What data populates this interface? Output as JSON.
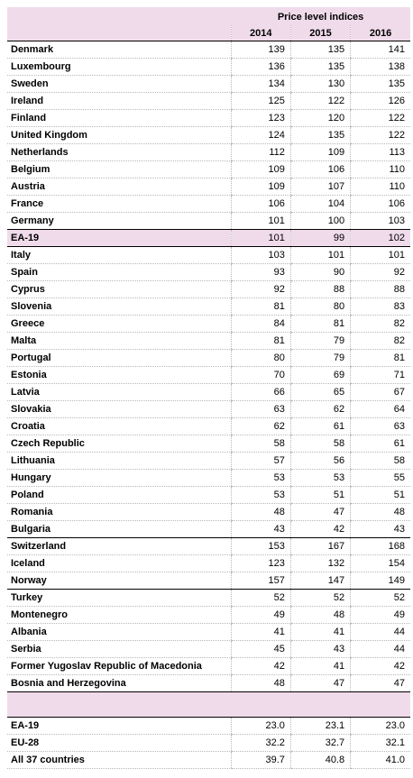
{
  "header": {
    "group_title": "Price level indices",
    "years": [
      "2014",
      "2015",
      "2016"
    ]
  },
  "groups": [
    {
      "rows": [
        {
          "name": "Denmark",
          "values": [
            "139",
            "135",
            "141"
          ]
        },
        {
          "name": "Luxembourg",
          "values": [
            "136",
            "135",
            "138"
          ]
        },
        {
          "name": "Sweden",
          "values": [
            "134",
            "130",
            "135"
          ]
        },
        {
          "name": "Ireland",
          "values": [
            "125",
            "122",
            "126"
          ]
        },
        {
          "name": "Finland",
          "values": [
            "123",
            "120",
            "122"
          ]
        },
        {
          "name": "United Kingdom",
          "values": [
            "124",
            "135",
            "122"
          ]
        },
        {
          "name": "Netherlands",
          "values": [
            "112",
            "109",
            "113"
          ]
        },
        {
          "name": "Belgium",
          "values": [
            "109",
            "106",
            "110"
          ]
        },
        {
          "name": "Austria",
          "values": [
            "109",
            "107",
            "110"
          ]
        },
        {
          "name": "France",
          "values": [
            "106",
            "104",
            "106"
          ]
        },
        {
          "name": "Germany",
          "values": [
            "101",
            "100",
            "103"
          ]
        }
      ]
    },
    {
      "highlight": true,
      "rows": [
        {
          "name": "EA-19",
          "values": [
            "101",
            "99",
            "102"
          ]
        }
      ]
    },
    {
      "rows": [
        {
          "name": "Italy",
          "values": [
            "103",
            "101",
            "101"
          ]
        },
        {
          "name": "Spain",
          "values": [
            "93",
            "90",
            "92"
          ]
        },
        {
          "name": "Cyprus",
          "values": [
            "92",
            "88",
            "88"
          ]
        },
        {
          "name": "Slovenia",
          "values": [
            "81",
            "80",
            "83"
          ]
        },
        {
          "name": "Greece",
          "values": [
            "84",
            "81",
            "82"
          ]
        },
        {
          "name": "Malta",
          "values": [
            "81",
            "79",
            "82"
          ]
        },
        {
          "name": "Portugal",
          "values": [
            "80",
            "79",
            "81"
          ]
        },
        {
          "name": "Estonia",
          "values": [
            "70",
            "69",
            "71"
          ]
        },
        {
          "name": "Latvia",
          "values": [
            "66",
            "65",
            "67"
          ]
        },
        {
          "name": "Slovakia",
          "values": [
            "63",
            "62",
            "64"
          ]
        },
        {
          "name": "Croatia",
          "values": [
            "62",
            "61",
            "63"
          ]
        },
        {
          "name": "Czech Republic",
          "values": [
            "58",
            "58",
            "61"
          ]
        },
        {
          "name": "Lithuania",
          "values": [
            "57",
            "56",
            "58"
          ]
        },
        {
          "name": "Hungary",
          "values": [
            "53",
            "53",
            "55"
          ]
        },
        {
          "name": "Poland",
          "values": [
            "53",
            "51",
            "51"
          ]
        },
        {
          "name": "Romania",
          "values": [
            "48",
            "47",
            "48"
          ]
        },
        {
          "name": "Bulgaria",
          "values": [
            "43",
            "42",
            "43"
          ]
        }
      ]
    },
    {
      "rows": [
        {
          "name": "Switzerland",
          "values": [
            "153",
            "167",
            "168"
          ]
        },
        {
          "name": "Iceland",
          "values": [
            "123",
            "132",
            "154"
          ]
        },
        {
          "name": "Norway",
          "values": [
            "157",
            "147",
            "149"
          ]
        }
      ]
    },
    {
      "rows": [
        {
          "name": "Turkey",
          "values": [
            "52",
            "52",
            "52"
          ]
        },
        {
          "name": "Montenegro",
          "values": [
            "49",
            "48",
            "49"
          ]
        },
        {
          "name": "Albania",
          "values": [
            "41",
            "41",
            "44"
          ]
        },
        {
          "name": "Serbia",
          "values": [
            "45",
            "43",
            "44"
          ]
        },
        {
          "name": "Former Yugoslav Republic of Macedonia",
          "values": [
            "42",
            "41",
            "42"
          ]
        },
        {
          "name": "Bosnia and Herzegovina",
          "values": [
            "48",
            "47",
            "47"
          ]
        }
      ]
    }
  ],
  "summary": [
    {
      "name": "EA-19",
      "values": [
        "23.0",
        "23.1",
        "23.0"
      ]
    },
    {
      "name": "EU-28",
      "values": [
        "32.2",
        "32.7",
        "32.1"
      ]
    },
    {
      "name": "All 37 countries",
      "values": [
        "39.7",
        "40.8",
        "41.0"
      ]
    }
  ]
}
